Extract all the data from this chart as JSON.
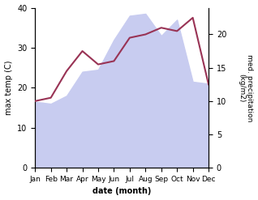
{
  "months": [
    "Jan",
    "Feb",
    "Mar",
    "Apr",
    "May",
    "Jun",
    "Jul",
    "Aug",
    "Sep",
    "Oct",
    "Nov",
    "Dec"
  ],
  "max_temp": [
    16.5,
    16.0,
    18.0,
    24.0,
    24.5,
    32.0,
    38.0,
    38.5,
    33.0,
    37.0,
    21.5,
    21.0
  ],
  "precipitation": [
    10.0,
    10.5,
    14.5,
    17.5,
    15.5,
    16.0,
    19.5,
    20.0,
    21.0,
    20.5,
    22.5,
    12.5
  ],
  "temp_fill_color": "#c8ccf0",
  "precip_line_color": "#993355",
  "temp_ylim": [
    0,
    40
  ],
  "precip_ylim": [
    0,
    24
  ],
  "precip_scale_max": 24,
  "temp_yticks": [
    0,
    10,
    20,
    30,
    40
  ],
  "precip_yticks": [
    0,
    5,
    10,
    15,
    20
  ],
  "ylabel_left": "max temp (C)",
  "ylabel_right": "med. precipitation\n(kg/m2)",
  "xlabel": "date (month)",
  "figsize": [
    3.18,
    2.47
  ],
  "dpi": 100
}
